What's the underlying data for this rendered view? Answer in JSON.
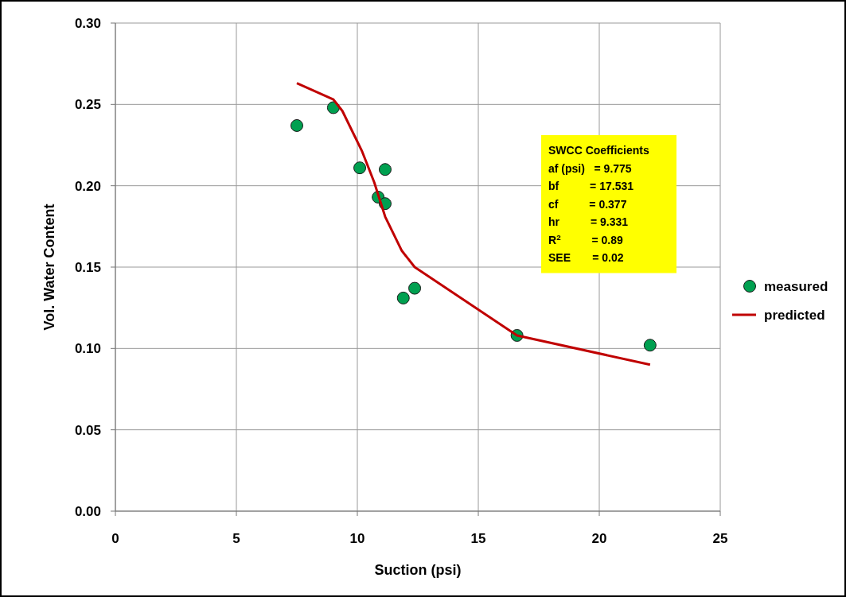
{
  "chart_data": {
    "type": "scatter",
    "xlabel": "Suction (psi)",
    "ylabel": "Vol. Water Content",
    "xlim": [
      0,
      25
    ],
    "xticks": [
      0,
      5,
      10,
      15,
      20,
      25
    ],
    "ylim": [
      0,
      0.3
    ],
    "yticks": [
      {
        "value": 0,
        "label": "0.00"
      },
      {
        "value": 0.05,
        "label": "0.05"
      },
      {
        "value": 0.1,
        "label": "0.10"
      },
      {
        "value": 0.15,
        "label": "0.15"
      },
      {
        "value": 0.2,
        "label": "0.20"
      },
      {
        "value": 0.25,
        "label": "0.25"
      },
      {
        "value": 0.3,
        "label": "0.30"
      }
    ],
    "grid": true,
    "legend": "right",
    "series": [
      {
        "name": "measured",
        "marker": "circle",
        "color": "#00a050",
        "x": [
          7.5,
          9.01,
          10.1,
          11.15,
          10.86,
          11.15,
          11.9,
          12.37,
          16.6,
          22.1
        ],
        "values": [
          0.237,
          0.248,
          0.211,
          0.21,
          0.193,
          0.189,
          0.131,
          0.137,
          0.108,
          0.102
        ]
      },
      {
        "name": "predicted",
        "type": "line",
        "marker": "none",
        "color": "#c00000",
        "x": [
          7.5,
          9.01,
          9.38,
          10.2,
          10.7,
          11.15,
          11.84,
          12.37,
          16.6,
          22.1
        ],
        "values": [
          0.263,
          0.253,
          0.246,
          0.221,
          0.202,
          0.181,
          0.16,
          0.15,
          0.108,
          0.09
        ]
      }
    ],
    "annotations": [
      "SWCC Coefficients",
      "af (psi)   = 9.775",
      "bf          = 17.531",
      "cf          = 0.377",
      "hr          = 9.331",
      "R$^{2}$          = 0.89",
      "SEE       = 0.02"
    ]
  }
}
